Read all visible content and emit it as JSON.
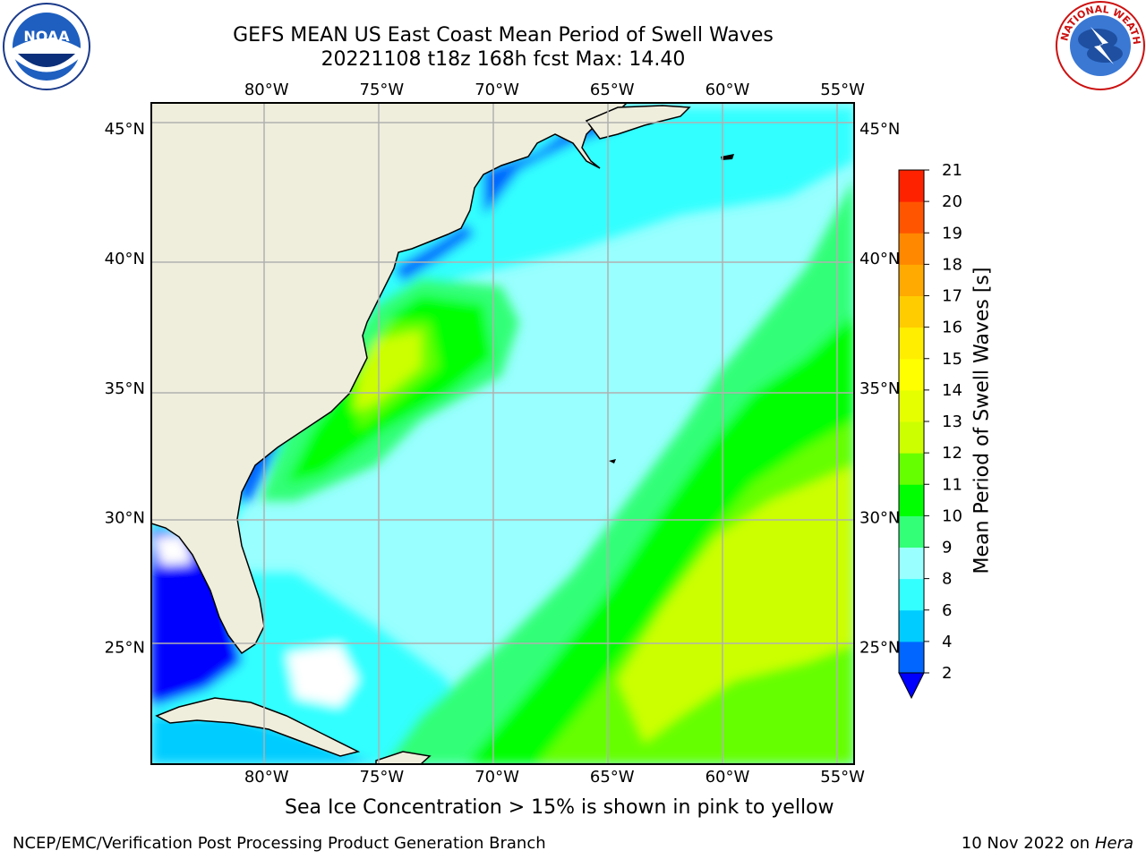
{
  "header": {
    "title_line1": "GEFS MEAN US East Coast Mean Period of Swell Waves",
    "title_line2": "20221108 t18z 168h fcst   Max: 14.40"
  },
  "map": {
    "lon_range": [
      -85,
      -54.5
    ],
    "lat_range": [
      20.5,
      46
    ],
    "lon_ticks": [
      "80°W",
      "75°W",
      "70°W",
      "65°W",
      "60°W",
      "55°W"
    ],
    "lon_values": [
      -80,
      -75,
      -70,
      -65,
      -60,
      -55
    ],
    "lat_ticks": [
      "45°N",
      "40°N",
      "35°N",
      "30°N",
      "25°N"
    ],
    "lat_values": [
      45,
      40,
      35,
      30,
      25
    ],
    "grid": true,
    "land_color": "#efeedd"
  },
  "colorbar": {
    "label": "Mean Period of Swell Waves [s]",
    "ticks": [
      "2",
      "4",
      "6",
      "8",
      "9",
      "10",
      "11",
      "12",
      "13",
      "14",
      "15",
      "16",
      "17",
      "18",
      "19",
      "20",
      "21"
    ],
    "colors": [
      "#0066ff",
      "#00ccff",
      "#33ffff",
      "#99ffff",
      "#33ff77",
      "#00ff00",
      "#66ff00",
      "#ccff00",
      "#e6ff00",
      "#ffff00",
      "#ffee00",
      "#ffcc00",
      "#ffaa00",
      "#ff8800",
      "#ff5500",
      "#ff2200"
    ],
    "under_color": "#0000ff"
  },
  "footer": {
    "ice_note": "Sea Ice Concentration > 15% is shown in pink to yellow",
    "branch": "NCEP/EMC/Verification Post Processing Product Generation Branch",
    "date": "10 Nov 2022 on",
    "host": "Hera"
  },
  "logos": {
    "noaa_text": "NOAA",
    "nws_text": "NATIONAL WEATHER SERVICE"
  }
}
